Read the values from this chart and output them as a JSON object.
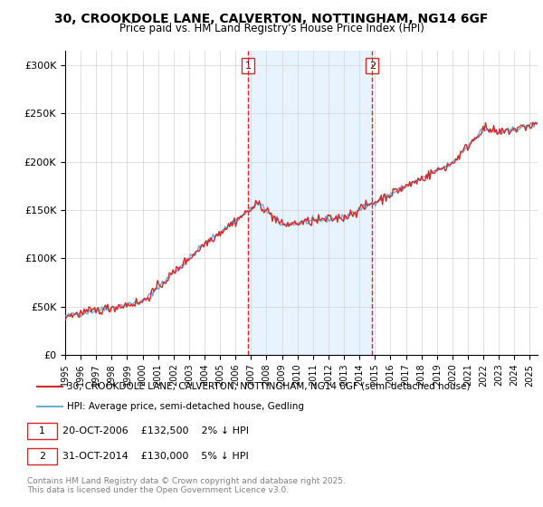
{
  "title_line1": "30, CROOKDOLE LANE, CALVERTON, NOTTINGHAM, NG14 6GF",
  "title_line2": "Price paid vs. HM Land Registry's House Price Index (HPI)",
  "ylabel_ticks": [
    "£0",
    "£50K",
    "£100K",
    "£150K",
    "£200K",
    "£250K",
    "£300K"
  ],
  "ytick_values": [
    0,
    50000,
    100000,
    150000,
    200000,
    250000,
    300000
  ],
  "ylim": [
    0,
    315000
  ],
  "xlim_start": 1995.0,
  "xlim_end": 2025.5,
  "sale1_date": 2006.8,
  "sale1_price": 132500,
  "sale2_date": 2014.83,
  "sale2_price": 130000,
  "legend_line1": "30, CROOKDOLE LANE, CALVERTON, NOTTINGHAM, NG14 6GF (semi-detached house)",
  "legend_line2": "HPI: Average price, semi-detached house, Gedling",
  "annotation1_label": "1",
  "annotation1_text": "20-OCT-2006    £132,500    2% ↓ HPI",
  "annotation2_label": "2",
  "annotation2_text": "31-OCT-2014    £130,000    5% ↓ HPI",
  "footer": "Contains HM Land Registry data © Crown copyright and database right 2025.\nThis data is licensed under the Open Government Licence v3.0.",
  "hpi_color": "#6baed6",
  "price_color": "#d62728",
  "sale_vline_color": "#d62728",
  "background_color": "#f0f4fa",
  "sale_shade_color": "#ddeeff"
}
